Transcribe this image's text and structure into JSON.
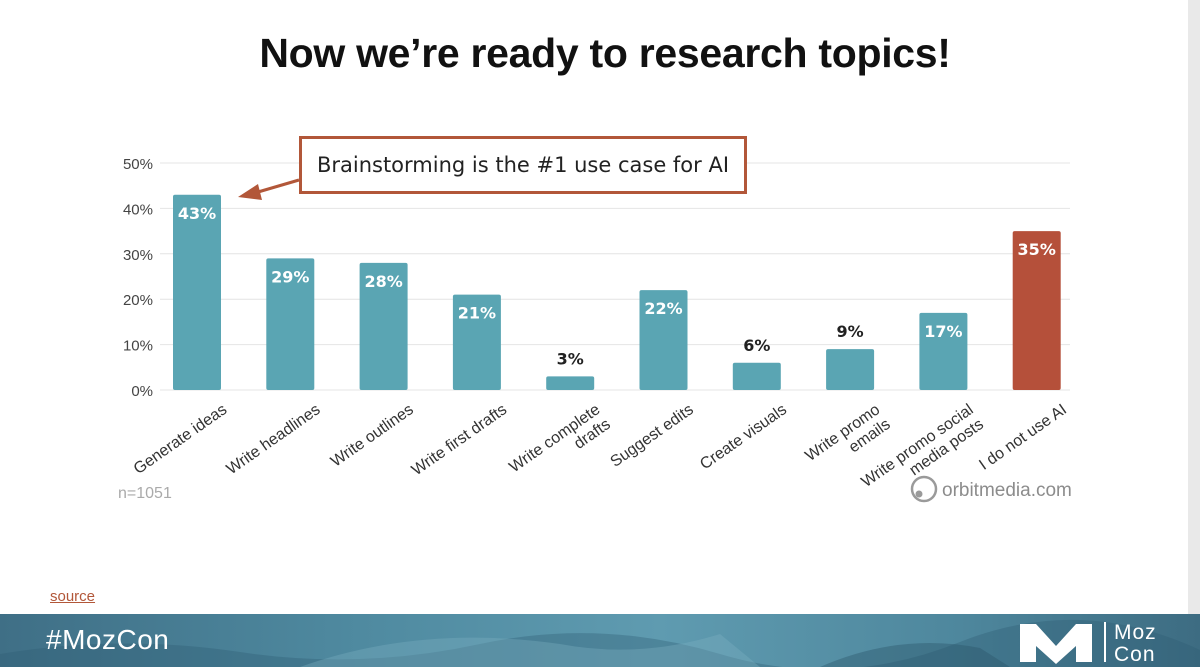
{
  "slide": {
    "title": "Now we’re ready to research topics!",
    "callout_text": "Brainstorming is the #1 use case for AI",
    "source_link": "source",
    "footer_hashtag": "#MozCon",
    "logo_word_1": "Moz",
    "logo_word_2": "Con"
  },
  "chart_data": {
    "type": "bar",
    "categories": [
      [
        "Generate ideas"
      ],
      [
        "Write headlines"
      ],
      [
        "Write outlines"
      ],
      [
        "Write first drafts"
      ],
      [
        "Write complete",
        "drafts"
      ],
      [
        "Suggest edits"
      ],
      [
        "Create visuals"
      ],
      [
        "Write promo",
        "emails"
      ],
      [
        "Write promo social",
        "media posts"
      ],
      [
        "I do not use AI"
      ]
    ],
    "values": [
      43,
      29,
      28,
      21,
      3,
      22,
      6,
      9,
      17,
      35
    ],
    "data_labels": [
      "43%",
      "29%",
      "28%",
      "21%",
      "3%",
      "22%",
      "6%",
      "9%",
      "17%",
      "35%"
    ],
    "y_ticks": [
      "0%",
      "10%",
      "20%",
      "30%",
      "40%",
      "50%"
    ],
    "ylim": [
      0,
      50
    ],
    "grid": true,
    "sample_note": "n=1051",
    "watermark": "orbitmedia.com",
    "colors": {
      "bar": "#5aa5b3",
      "highlight_bar": "#b5503a",
      "grid": "#e4e4e4",
      "tick_text": "#444444"
    },
    "highlight_index": 9
  }
}
